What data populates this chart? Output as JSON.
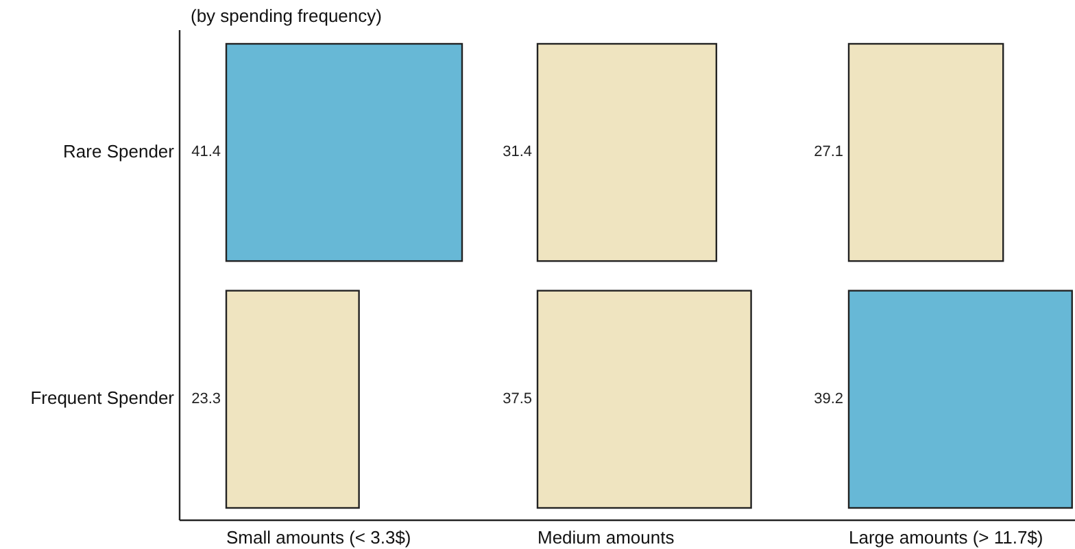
{
  "chart_data": [
    {
      "type": "bar",
      "orientation": "horizontal",
      "subtitle": "(by spending frequency)",
      "xlabel": "Small amounts (< 3.3$)",
      "categories": [
        "Rare Spender",
        "Frequent Spender"
      ],
      "values": [
        41.4,
        23.3
      ],
      "colors": [
        "#67b8d6",
        "#efe4c0"
      ],
      "data_labels": true,
      "tick_labels": "y",
      "grid": false
    },
    {
      "type": "bar",
      "orientation": "horizontal",
      "xlabel": "Medium amounts",
      "values": [
        31.4,
        37.5
      ],
      "colors": [
        "#efe4c0",
        "#efe4c0"
      ],
      "data_labels": true,
      "tick_labels": false,
      "grid": false
    },
    {
      "type": "bar",
      "orientation": "horizontal",
      "xlabel": "Large amounts (> 11.7$)",
      "values": [
        27.1,
        39.2
      ],
      "colors": [
        "#efe4c0",
        "#67b8d6"
      ],
      "data_labels": true,
      "tick_labels": false,
      "grid": false
    }
  ]
}
